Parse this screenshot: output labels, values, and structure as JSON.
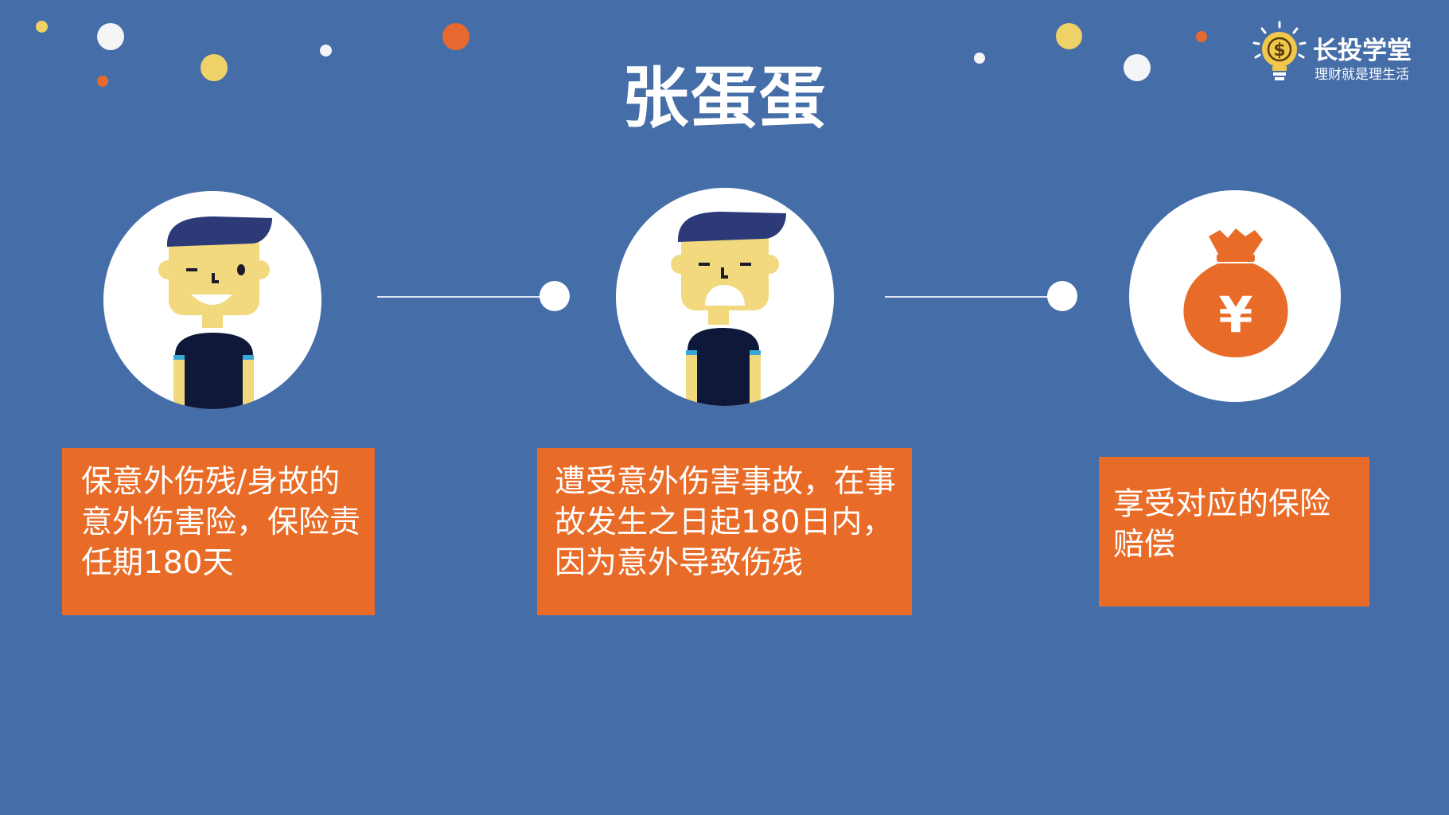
{
  "title": "张蛋蛋",
  "brand": {
    "name": "长投学堂",
    "slogan": "理财就是理生活",
    "icon": "lightbulb-dollar-icon"
  },
  "steps": [
    {
      "icon": "happy-man-icon",
      "text": "保意外伤残/身故的意外伤害险，保险责任期180天"
    },
    {
      "icon": "upset-man-icon",
      "text": "遭受意外伤害事故，在事故发生之日起180日内，因为意外导致伤残"
    },
    {
      "icon": "money-bag-icon",
      "symbol": "¥",
      "text": "享受对应的保险赔偿"
    }
  ],
  "colors": {
    "background": "#456ea8",
    "card": "#e86c28",
    "hair": "#2c3a78",
    "skin": "#f2d97e",
    "shirt": "#0f1838",
    "bag": "#e86c28",
    "dot_yellow": "#efd267",
    "dot_orange": "#e8692f",
    "dot_white": "#f5f5f7"
  }
}
